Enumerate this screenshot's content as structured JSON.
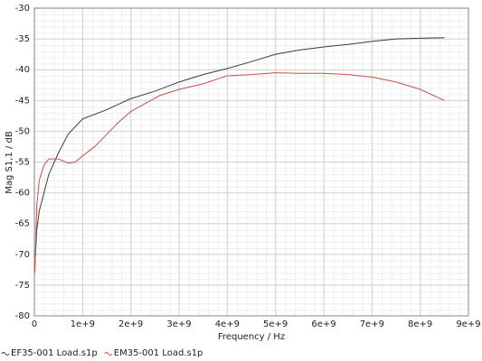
{
  "chart_data": {
    "type": "line",
    "xlabel": "Frequency / Hz",
    "ylabel": "Mag S1,1 / dB",
    "xlim": [
      0,
      9000000000.0
    ],
    "ylim": [
      -80,
      -30
    ],
    "xticks": [
      0,
      {
        "value": 1000000000.0,
        "label": "1e+9"
      },
      {
        "value": 2000000000.0,
        "label": "2e+9"
      },
      {
        "value": 3000000000.0,
        "label": "3e+9"
      },
      {
        "value": 4000000000.0,
        "label": "4e+9"
      },
      {
        "value": 5000000000.0,
        "label": "5e+9"
      },
      {
        "value": 6000000000.0,
        "label": "6e+9"
      },
      {
        "value": 7000000000.0,
        "label": "7e+9"
      },
      {
        "value": 8000000000.0,
        "label": "8e+9"
      },
      {
        "value": 9000000000.0,
        "label": "9e+9"
      }
    ],
    "yticks": [
      -80,
      -75,
      -70,
      -65,
      -60,
      -55,
      -50,
      -45,
      -40,
      -35,
      -30
    ],
    "grid": true,
    "legend": "bottom-left",
    "series": [
      {
        "name": "EF35-001 Load.s1p",
        "color": "#3a3a3a",
        "x": [
          10000000.0,
          50000000.0,
          100000000.0,
          200000000.0,
          300000000.0,
          500000000.0,
          700000000.0,
          1000000000.0,
          1500000000.0,
          2000000000.0,
          2500000000.0,
          3000000000.0,
          3500000000.0,
          4000000000.0,
          4500000000.0,
          5000000000.0,
          5500000000.0,
          6000000000.0,
          6500000000.0,
          7000000000.0,
          7500000000.0,
          8000000000.0,
          8500000000.0
        ],
        "values": [
          -72,
          -66,
          -63,
          -60,
          -57,
          -53.5,
          -50.5,
          -48,
          -46.5,
          -44.7,
          -43.5,
          -42,
          -40.8,
          -39.8,
          -38.7,
          -37.5,
          -36.8,
          -36.3,
          -35.9,
          -35.4,
          -35.0,
          -34.9,
          -34.8
        ]
      },
      {
        "name": "EM35-001 Load.s1p",
        "color": "#c9504a",
        "x": [
          10000000.0,
          50000000.0,
          100000000.0,
          200000000.0,
          300000000.0,
          500000000.0,
          700000000.0,
          850000000.0,
          1000000000.0,
          1250000000.0,
          1500000000.0,
          1750000000.0,
          2000000000.0,
          2300000000.0,
          2600000000.0,
          3000000000.0,
          3500000000.0,
          3800000000.0,
          4000000000.0,
          4500000000.0,
          5000000000.0,
          5500000000.0,
          6000000000.0,
          6500000000.0,
          7000000000.0,
          7500000000.0,
          8000000000.0,
          8500000000.0
        ],
        "values": [
          -73,
          -62,
          -58,
          -55.5,
          -54.5,
          -54.5,
          -55.2,
          -55,
          -54,
          -52.5,
          -50.5,
          -48.5,
          -46.8,
          -45.5,
          -44.2,
          -43.2,
          -42.3,
          -41.5,
          -41,
          -40.8,
          -40.5,
          -40.6,
          -40.6,
          -40.8,
          -41.2,
          -42,
          -43.2,
          -45
        ]
      }
    ]
  }
}
